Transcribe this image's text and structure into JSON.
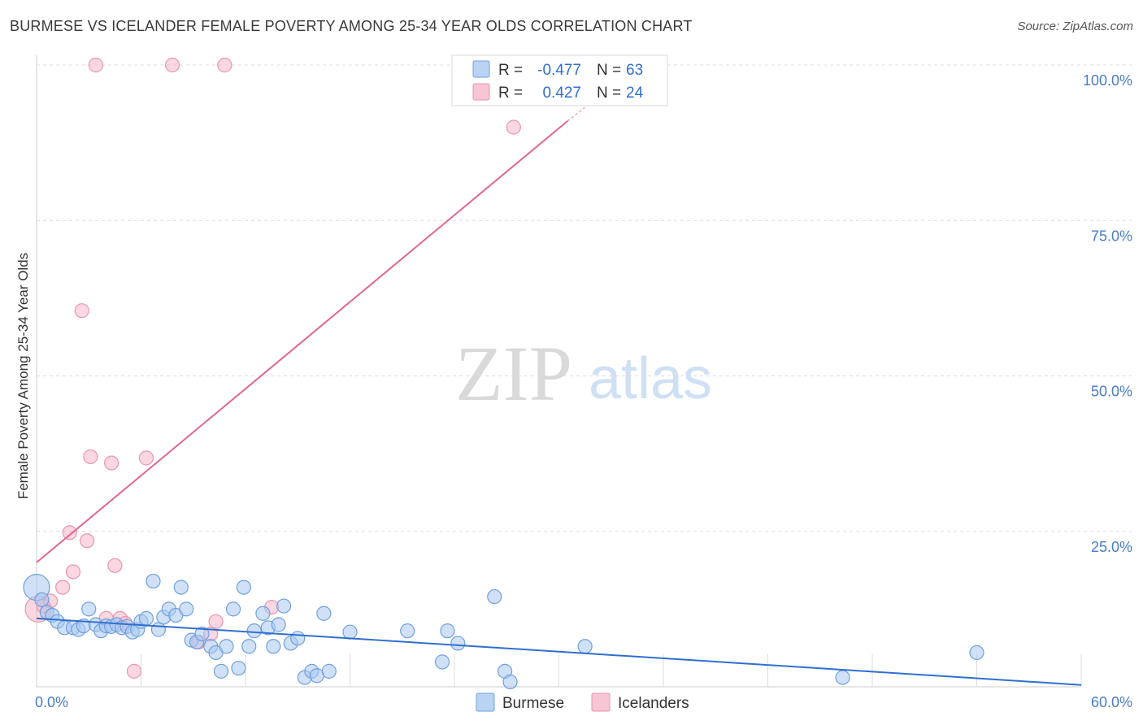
{
  "title": "BURMESE VS ICELANDER FEMALE POVERTY AMONG 25-34 YEAR OLDS CORRELATION CHART",
  "source": "Source: ZipAtlas.com",
  "watermark": {
    "zip": "ZIP",
    "atlas": "atlas"
  },
  "colors": {
    "burmese_fill": "#a9c8f0",
    "burmese_stroke": "#6fa0de",
    "burmese_line": "#2f6fd0",
    "icelander_fill": "#f5b7c9",
    "icelander_stroke": "#e895b0",
    "icelander_line": "#e0668f",
    "grid": "#dcdcdc",
    "tick": "#4a7cc7"
  },
  "legend": {
    "rows": [
      {
        "r_label": "R =",
        "r_value": "-0.477",
        "n_label": "N =",
        "n_value": "63"
      },
      {
        "r_label": "R =",
        "r_value": "0.427",
        "n_label": "N =",
        "n_value": "24"
      }
    ]
  },
  "chart_data": {
    "type": "scatter",
    "title": "BURMESE VS ICELANDER FEMALE POVERTY AMONG 25-34 YEAR OLDS CORRELATION CHART",
    "xlabel": "",
    "ylabel": "Female Poverty Among 25-34 Year Olds",
    "xlim": [
      0,
      60
    ],
    "ylim": [
      0,
      100
    ],
    "x_tick_labels": [
      "0.0%",
      "60.0%"
    ],
    "y_ticks": [
      25,
      50,
      75,
      100
    ],
    "y_tick_labels": [
      "25.0%",
      "50.0%",
      "75.0%",
      "100.0%"
    ],
    "grid": true,
    "legend_position": "top-center",
    "series": [
      {
        "name": "Burmese",
        "trend": {
          "x": [
            0,
            60
          ],
          "y": [
            11.0,
            0.3
          ]
        },
        "points": [
          {
            "x": 0.0,
            "y": 16.0,
            "size": "large"
          },
          {
            "x": 0.3,
            "y": 14.0
          },
          {
            "x": 0.6,
            "y": 12.0
          },
          {
            "x": 0.9,
            "y": 11.5
          },
          {
            "x": 1.2,
            "y": 10.5
          },
          {
            "x": 1.6,
            "y": 9.5
          },
          {
            "x": 2.1,
            "y": 9.5
          },
          {
            "x": 2.4,
            "y": 9.2
          },
          {
            "x": 2.7,
            "y": 9.8
          },
          {
            "x": 3.0,
            "y": 12.5
          },
          {
            "x": 3.4,
            "y": 10.0
          },
          {
            "x": 3.7,
            "y": 9.0
          },
          {
            "x": 4.0,
            "y": 9.8
          },
          {
            "x": 4.3,
            "y": 9.7
          },
          {
            "x": 4.6,
            "y": 10.0
          },
          {
            "x": 4.9,
            "y": 9.5
          },
          {
            "x": 5.2,
            "y": 9.7
          },
          {
            "x": 5.5,
            "y": 8.8
          },
          {
            "x": 5.8,
            "y": 9.2
          },
          {
            "x": 6.0,
            "y": 10.5
          },
          {
            "x": 6.3,
            "y": 11.0
          },
          {
            "x": 6.7,
            "y": 17.0
          },
          {
            "x": 7.0,
            "y": 9.2
          },
          {
            "x": 7.3,
            "y": 11.2
          },
          {
            "x": 7.6,
            "y": 12.5
          },
          {
            "x": 8.0,
            "y": 11.5
          },
          {
            "x": 8.3,
            "y": 16.0
          },
          {
            "x": 8.6,
            "y": 12.5
          },
          {
            "x": 8.9,
            "y": 7.5
          },
          {
            "x": 9.2,
            "y": 7.2
          },
          {
            "x": 9.5,
            "y": 8.5
          },
          {
            "x": 10.0,
            "y": 6.5
          },
          {
            "x": 10.3,
            "y": 5.5
          },
          {
            "x": 10.6,
            "y": 2.5
          },
          {
            "x": 10.9,
            "y": 6.5
          },
          {
            "x": 11.3,
            "y": 12.5
          },
          {
            "x": 11.6,
            "y": 3.0
          },
          {
            "x": 11.9,
            "y": 16.0
          },
          {
            "x": 12.2,
            "y": 6.5
          },
          {
            "x": 12.5,
            "y": 9.0
          },
          {
            "x": 13.0,
            "y": 11.8
          },
          {
            "x": 13.3,
            "y": 9.5
          },
          {
            "x": 13.6,
            "y": 6.5
          },
          {
            "x": 13.9,
            "y": 10.0
          },
          {
            "x": 14.2,
            "y": 13.0
          },
          {
            "x": 14.6,
            "y": 7.0
          },
          {
            "x": 15.0,
            "y": 7.8
          },
          {
            "x": 15.4,
            "y": 1.5
          },
          {
            "x": 15.8,
            "y": 2.5
          },
          {
            "x": 16.1,
            "y": 1.8
          },
          {
            "x": 16.5,
            "y": 11.8
          },
          {
            "x": 16.8,
            "y": 2.5
          },
          {
            "x": 18.0,
            "y": 8.8
          },
          {
            "x": 21.3,
            "y": 9.0
          },
          {
            "x": 23.3,
            "y": 4.0
          },
          {
            "x": 23.6,
            "y": 9.0
          },
          {
            "x": 24.2,
            "y": 7.0
          },
          {
            "x": 26.3,
            "y": 14.5
          },
          {
            "x": 26.9,
            "y": 2.5
          },
          {
            "x": 27.2,
            "y": 0.8
          },
          {
            "x": 31.5,
            "y": 6.5
          },
          {
            "x": 46.3,
            "y": 1.5
          },
          {
            "x": 54.0,
            "y": 5.5
          }
        ]
      },
      {
        "name": "Icelanders",
        "trend": {
          "x": [
            0,
            30.5
          ],
          "y": [
            20.0,
            91.0
          ],
          "dash_to": {
            "x": 31.5,
            "y": 93.2
          }
        },
        "points": [
          {
            "x": 0.1,
            "y": 12.5,
            "size": "large"
          },
          {
            "x": 0.4,
            "y": 13.0
          },
          {
            "x": 0.8,
            "y": 13.8
          },
          {
            "x": 1.5,
            "y": 16.0
          },
          {
            "x": 1.9,
            "y": 24.8
          },
          {
            "x": 2.1,
            "y": 18.5
          },
          {
            "x": 2.6,
            "y": 60.5
          },
          {
            "x": 2.9,
            "y": 23.5
          },
          {
            "x": 3.1,
            "y": 37.0
          },
          {
            "x": 3.4,
            "y": 100.0
          },
          {
            "x": 4.0,
            "y": 11.0
          },
          {
            "x": 4.3,
            "y": 36.0
          },
          {
            "x": 4.5,
            "y": 19.5
          },
          {
            "x": 4.8,
            "y": 11.0
          },
          {
            "x": 5.1,
            "y": 10.2
          },
          {
            "x": 5.6,
            "y": 2.5
          },
          {
            "x": 6.3,
            "y": 36.8
          },
          {
            "x": 7.8,
            "y": 100.0
          },
          {
            "x": 9.3,
            "y": 7.2
          },
          {
            "x": 10.0,
            "y": 8.5
          },
          {
            "x": 10.3,
            "y": 10.5
          },
          {
            "x": 10.8,
            "y": 100.0
          },
          {
            "x": 13.5,
            "y": 12.8
          },
          {
            "x": 27.4,
            "y": 90.0
          }
        ]
      }
    ]
  },
  "bottom_legend": [
    {
      "label": "Burmese"
    },
    {
      "label": "Icelanders"
    }
  ]
}
